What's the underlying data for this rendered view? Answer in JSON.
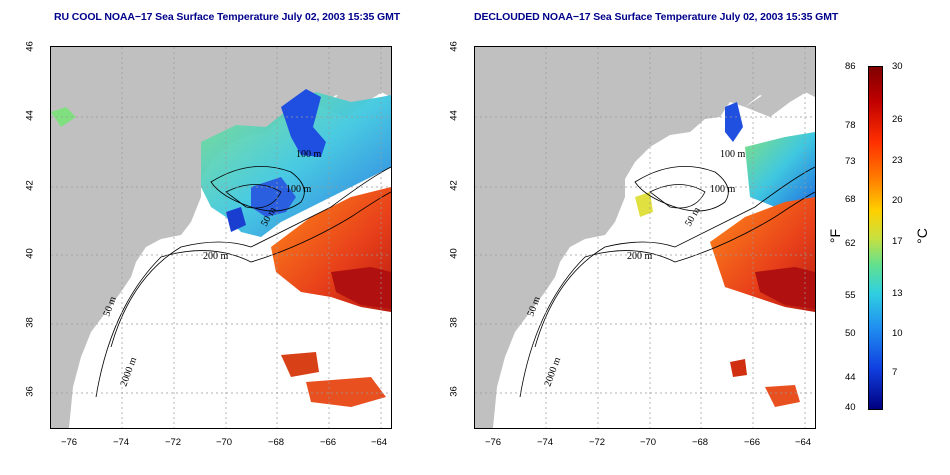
{
  "panels": [
    {
      "title": "RU COOL NOAA−17 Sea Surface Temperature July 02, 2003 15:35 GMT"
    },
    {
      "title": "DECLOUDED NOAA−17 Sea Surface Temperature July 02, 2003 15:35 GMT"
    }
  ],
  "axes": {
    "y_ticks": [
      "46",
      "44",
      "42",
      "40",
      "38",
      "36"
    ],
    "x_ticks": [
      "−76",
      "−74",
      "−72",
      "−70",
      "−68",
      "−66",
      "−64"
    ]
  },
  "contours": {
    "c200": "200 m",
    "c100": "100 m",
    "c50": "50 m",
    "c2000": "2000 m"
  },
  "colorbar": {
    "fahrenheit_unit": "°F",
    "celsius_unit": "°C",
    "fahrenheit_ticks": [
      "86",
      "78",
      "73",
      "68",
      "62",
      "55",
      "50",
      "44",
      "40"
    ],
    "celsius_ticks": [
      "30",
      "26",
      "23",
      "20",
      "17",
      "13",
      "10",
      "7"
    ]
  },
  "colors": {
    "land": "#c0c0c0",
    "title": "#00008b",
    "warm": "#e04010",
    "cold": "#1040e0"
  }
}
